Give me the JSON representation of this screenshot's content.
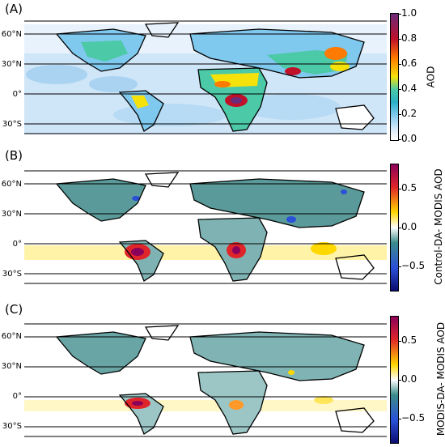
{
  "panels": [
    {
      "letter": "(A)",
      "colorbar_label": "AOD",
      "colorbar_ticks": [
        "1.0",
        "0.8",
        "0.6",
        "0.4",
        "0.2",
        "0.0"
      ],
      "lat_labels": [
        "60°N",
        "30°N",
        "0°",
        "30°S"
      ],
      "colormap": [
        "#6b2a7a",
        "#c0112a",
        "#ff7a00",
        "#f4e20a",
        "#4cc9a6",
        "#2ab0c8",
        "#7fc8ee",
        "#dcecfa",
        "#ffffff"
      ]
    },
    {
      "letter": "(B)",
      "colorbar_label": "Control-DA- MODIS AOD",
      "colorbar_ticks": [
        "0.5",
        "0.0",
        "−0.5"
      ],
      "lat_labels": [
        "60°N",
        "30°N",
        "0°",
        "30°S"
      ],
      "colormap": [
        "#8b005a",
        "#e0252a",
        "#ffd800",
        "#ffffff",
        "#3c8c8c",
        "#2a50d8",
        "#0b0b70"
      ]
    },
    {
      "letter": "(C)",
      "colorbar_label": "MODIS-DA- MODIS AOD",
      "colorbar_ticks": [
        "0.5",
        "0.0",
        "−0.5"
      ],
      "lat_labels": [
        "60°N",
        "30°N",
        "0°",
        "30°S"
      ],
      "colormap": [
        "#8b005a",
        "#e0252a",
        "#ffd800",
        "#ffffff",
        "#3c8c8c",
        "#2a50d8",
        "#0b0b70"
      ]
    }
  ]
}
